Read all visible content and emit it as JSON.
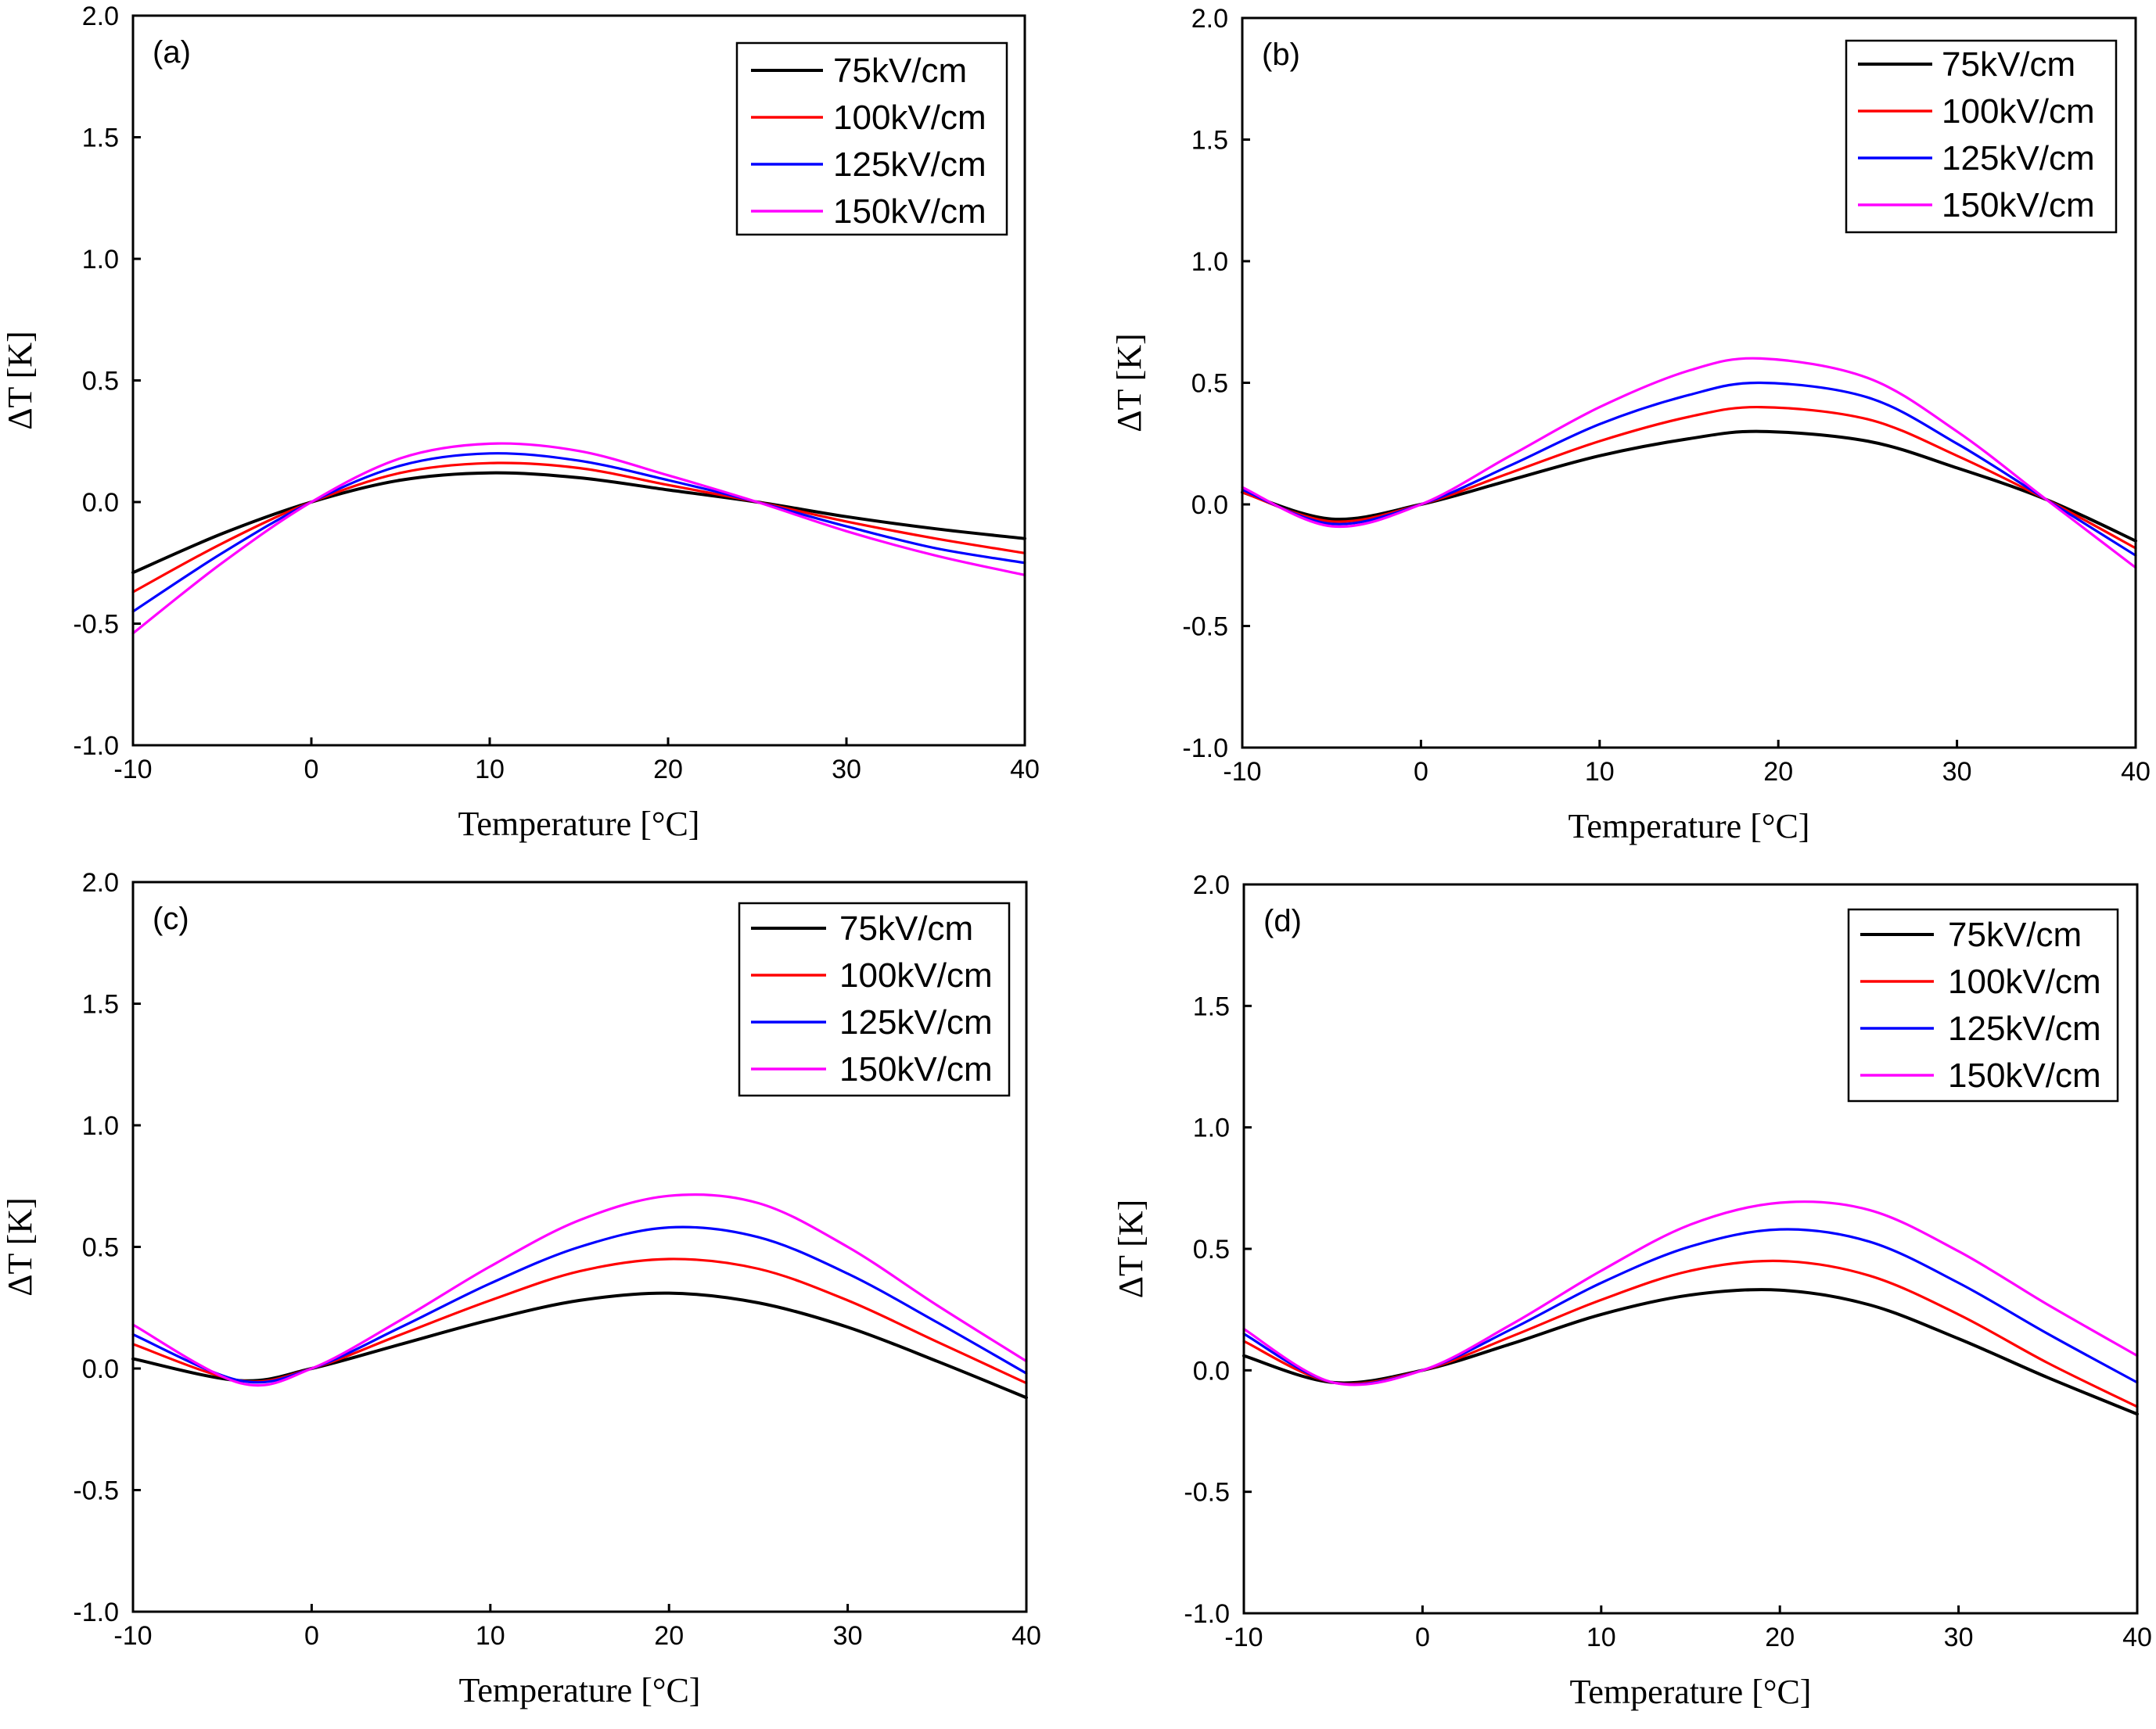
{
  "chart_data": [
    {
      "type": "line",
      "panel_label": "(a)",
      "xlabel": "Temperature [°C]",
      "ylabel": "ΔT [K]",
      "xlim": [
        -10,
        40
      ],
      "ylim": [
        -1.0,
        2.0
      ],
      "xticks": [
        "-10",
        "0",
        "10",
        "20",
        "30",
        "40"
      ],
      "yticks": [
        "-1.0",
        "-0.5",
        "0.0",
        "0.5",
        "1.0",
        "1.5",
        "2.0"
      ],
      "legend_position": "top-right",
      "grid": false,
      "x": [
        -10,
        -5,
        0,
        5,
        10,
        15,
        20,
        25,
        30,
        35,
        40
      ],
      "series": [
        {
          "name": "75kV/cm",
          "color": "#000000",
          "values": [
            -0.29,
            -0.13,
            0.0,
            0.09,
            0.12,
            0.1,
            0.05,
            0.0,
            -0.06,
            -0.11,
            -0.15
          ]
        },
        {
          "name": "100kV/cm",
          "color": "#ff0000",
          "values": [
            -0.37,
            -0.17,
            0.0,
            0.12,
            0.16,
            0.14,
            0.07,
            0.0,
            -0.08,
            -0.15,
            -0.21
          ]
        },
        {
          "name": "125kV/cm",
          "color": "#0000ff",
          "values": [
            -0.45,
            -0.21,
            0.0,
            0.15,
            0.2,
            0.17,
            0.09,
            0.0,
            -0.1,
            -0.19,
            -0.25
          ]
        },
        {
          "name": "150kV/cm",
          "color": "#ff00ff",
          "values": [
            -0.54,
            -0.25,
            0.0,
            0.18,
            0.24,
            0.21,
            0.11,
            0.0,
            -0.12,
            -0.22,
            -0.3
          ]
        }
      ]
    },
    {
      "type": "line",
      "panel_label": "(b)",
      "xlabel": "Temperature [°C]",
      "ylabel": "ΔT [K]",
      "xlim": [
        -10,
        40
      ],
      "ylim": [
        -1.0,
        2.0
      ],
      "xticks": [
        "-10",
        "0",
        "10",
        "20",
        "30",
        "40"
      ],
      "yticks": [
        "-1.0",
        "-0.5",
        "0.0",
        "0.5",
        "1.0",
        "1.5",
        "2.0"
      ],
      "legend_position": "top-right",
      "grid": false,
      "x": [
        -10,
        -5,
        0,
        5,
        10,
        15,
        19,
        25,
        30,
        35,
        40
      ],
      "series": [
        {
          "name": "75kV/cm",
          "color": "#000000",
          "values": [
            0.05,
            -0.06,
            0.0,
            0.1,
            0.2,
            0.27,
            0.3,
            0.26,
            0.15,
            0.02,
            -0.15
          ]
        },
        {
          "name": "100kV/cm",
          "color": "#ff0000",
          "values": [
            0.05,
            -0.07,
            0.0,
            0.13,
            0.26,
            0.36,
            0.4,
            0.35,
            0.2,
            0.02,
            -0.18
          ]
        },
        {
          "name": "125kV/cm",
          "color": "#0000ff",
          "values": [
            0.06,
            -0.08,
            0.0,
            0.16,
            0.33,
            0.45,
            0.5,
            0.44,
            0.25,
            0.02,
            -0.21
          ]
        },
        {
          "name": "150kV/cm",
          "color": "#ff00ff",
          "values": [
            0.07,
            -0.09,
            0.0,
            0.2,
            0.4,
            0.55,
            0.6,
            0.52,
            0.3,
            0.02,
            -0.26
          ]
        }
      ]
    },
    {
      "type": "line",
      "panel_label": "(c)",
      "xlabel": "Temperature [°C]",
      "ylabel": "ΔT [K]",
      "xlim": [
        -10,
        40
      ],
      "ylim": [
        -1.0,
        2.0
      ],
      "xticks": [
        "-10",
        "0",
        "10",
        "20",
        "30",
        "40"
      ],
      "yticks": [
        "-1.0",
        "-0.5",
        "0.0",
        "0.5",
        "1.0",
        "1.5",
        "2.0"
      ],
      "legend_position": "top-right",
      "grid": false,
      "x": [
        -10,
        -4,
        0,
        5,
        10,
        15,
        20,
        25,
        30,
        35,
        40
      ],
      "series": [
        {
          "name": "75kV/cm",
          "color": "#000000",
          "values": [
            0.04,
            -0.05,
            0.0,
            0.1,
            0.2,
            0.28,
            0.31,
            0.27,
            0.17,
            0.03,
            -0.12
          ]
        },
        {
          "name": "100kV/cm",
          "color": "#ff0000",
          "values": [
            0.1,
            -0.05,
            0.0,
            0.14,
            0.28,
            0.4,
            0.45,
            0.41,
            0.28,
            0.11,
            -0.06
          ]
        },
        {
          "name": "125kV/cm",
          "color": "#0000ff",
          "values": [
            0.14,
            -0.05,
            0.0,
            0.17,
            0.35,
            0.5,
            0.58,
            0.54,
            0.39,
            0.19,
            -0.02
          ]
        },
        {
          "name": "150kV/cm",
          "color": "#ff00ff",
          "values": [
            0.18,
            -0.06,
            0.0,
            0.2,
            0.42,
            0.61,
            0.71,
            0.68,
            0.5,
            0.26,
            0.03
          ]
        }
      ]
    },
    {
      "type": "line",
      "panel_label": "(d)",
      "xlabel": "Temperature [°C]",
      "ylabel": "ΔT [K]",
      "xlim": [
        -10,
        40
      ],
      "ylim": [
        -1.0,
        2.0
      ],
      "xticks": [
        "-10",
        "0",
        "10",
        "20",
        "30",
        "40"
      ],
      "yticks": [
        "-1.0",
        "-0.5",
        "0.0",
        "0.5",
        "1.0",
        "1.5",
        "2.0"
      ],
      "legend_position": "top-right",
      "grid": false,
      "x": [
        -10,
        -5,
        0,
        5,
        10,
        15,
        20,
        25,
        30,
        35,
        40
      ],
      "series": [
        {
          "name": "75kV/cm",
          "color": "#000000",
          "values": [
            0.06,
            -0.05,
            0.0,
            0.11,
            0.23,
            0.31,
            0.33,
            0.27,
            0.13,
            -0.03,
            -0.18
          ]
        },
        {
          "name": "100kV/cm",
          "color": "#ff0000",
          "values": [
            0.12,
            -0.05,
            0.0,
            0.14,
            0.29,
            0.41,
            0.45,
            0.39,
            0.23,
            0.03,
            -0.15
          ]
        },
        {
          "name": "125kV/cm",
          "color": "#0000ff",
          "values": [
            0.15,
            -0.05,
            0.0,
            0.17,
            0.36,
            0.51,
            0.58,
            0.53,
            0.36,
            0.15,
            -0.05
          ]
        },
        {
          "name": "150kV/cm",
          "color": "#ff00ff",
          "values": [
            0.17,
            -0.05,
            0.0,
            0.19,
            0.41,
            0.6,
            0.69,
            0.66,
            0.49,
            0.27,
            0.06
          ]
        }
      ]
    }
  ]
}
